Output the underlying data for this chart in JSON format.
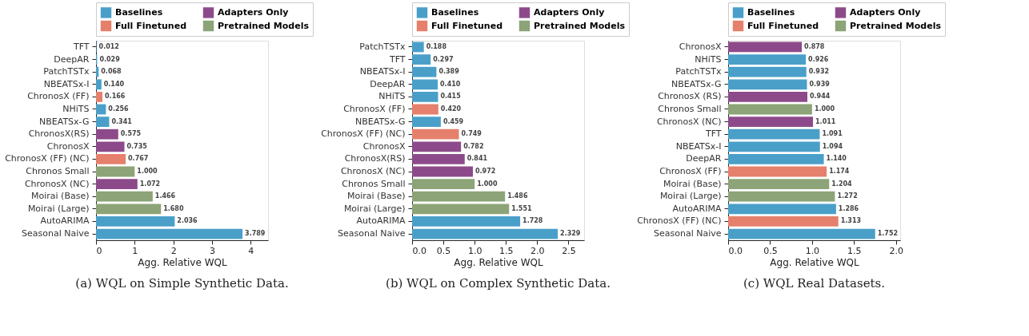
{
  "chart_data": [
    {
      "type": "bar",
      "orientation": "horizontal",
      "xlabel": "Agg. Relative WQL",
      "legend": "top",
      "grid": false,
      "categories": [
        "TFT",
        "DeepAR",
        "PatchTSTx",
        "NBEATSx-I",
        "ChronosX (FF)",
        "NHiTS",
        "NBEATSx-G",
        "ChronosX(RS)",
        "ChronosX",
        "ChronosX (FF) (NC)",
        "Chronos Small",
        "ChronosX (NC)",
        "Moirai (Base)",
        "Moirai (Large)",
        "AutoARIMA",
        "Seasonal Naive"
      ],
      "series": [
        {
          "name": "Baselines",
          "color": "#4a9fc9",
          "values": [
            0.012,
            0.029,
            0.068,
            0.14,
            null,
            0.256,
            0.341,
            null,
            null,
            null,
            null,
            null,
            null,
            null,
            2.036,
            3.789
          ],
          "value_labels": [
            "0.012",
            "0.029",
            "0.068",
            "0.140",
            null,
            "0.256",
            "0.341",
            null,
            null,
            null,
            null,
            null,
            null,
            null,
            "2.036",
            "3.789"
          ]
        },
        {
          "name": "Full Finetuned",
          "color": "#e5806c",
          "values": [
            null,
            null,
            null,
            null,
            0.166,
            null,
            null,
            null,
            null,
            0.767,
            null,
            null,
            null,
            null,
            null,
            null
          ],
          "value_labels": [
            null,
            null,
            null,
            null,
            "0.166",
            null,
            null,
            null,
            null,
            "0.767",
            null,
            null,
            null,
            null,
            null,
            null
          ]
        },
        {
          "name": "Adapters Only",
          "color": "#8d4a8a",
          "values": [
            null,
            null,
            null,
            null,
            null,
            null,
            null,
            0.575,
            0.735,
            null,
            null,
            1.072,
            null,
            null,
            null,
            null
          ],
          "value_labels": [
            null,
            null,
            null,
            null,
            null,
            null,
            null,
            "0.575",
            "0.735",
            null,
            null,
            "1.072",
            null,
            null,
            null,
            null
          ]
        },
        {
          "name": "Pretrained Models",
          "color": "#8ca477",
          "values": [
            null,
            null,
            null,
            null,
            null,
            null,
            null,
            null,
            null,
            null,
            1.0,
            null,
            1.466,
            1.68,
            null,
            null
          ],
          "value_labels": [
            null,
            null,
            null,
            null,
            null,
            null,
            null,
            null,
            null,
            null,
            "1.000",
            null,
            "1.466",
            "1.680",
            null,
            null
          ]
        }
      ],
      "xlim": [
        0,
        4.45
      ],
      "xticks": [
        0,
        1,
        2,
        3,
        4
      ],
      "annotations": [
        "(a) WQL on Simple Synthetic Data."
      ]
    },
    {
      "type": "bar",
      "orientation": "horizontal",
      "xlabel": "Agg. Relative WQL",
      "legend": "top",
      "grid": false,
      "categories": [
        "PatchTSTx",
        "TFT",
        "NBEATSx-I",
        "DeepAR",
        "NHiTS",
        "ChronosX (FF)",
        "NBEATSx-G",
        "ChronosX (FF) (NC)",
        "ChronosX",
        "ChronosX(RS)",
        "ChronosX (NC)",
        "Chronos Small",
        "Moirai (Base)",
        "Moirai (Large)",
        "AutoARIMA",
        "Seasonal Naive"
      ],
      "series": [
        {
          "name": "Baselines",
          "color": "#4a9fc9",
          "values": [
            0.188,
            0.297,
            0.389,
            0.41,
            0.415,
            null,
            0.459,
            null,
            null,
            null,
            null,
            null,
            null,
            null,
            1.728,
            2.329
          ],
          "value_labels": [
            "0.188",
            "0.297",
            "0.389",
            "0.410",
            "0.415",
            null,
            "0.459",
            null,
            null,
            null,
            null,
            null,
            null,
            null,
            "1.728",
            "2.329"
          ]
        },
        {
          "name": "Full Finetuned",
          "color": "#e5806c",
          "values": [
            null,
            null,
            null,
            null,
            null,
            0.42,
            null,
            0.749,
            null,
            null,
            null,
            null,
            null,
            null,
            null,
            null
          ],
          "value_labels": [
            null,
            null,
            null,
            null,
            null,
            "0.420",
            null,
            "0.749",
            null,
            null,
            null,
            null,
            null,
            null,
            null,
            null
          ]
        },
        {
          "name": "Adapters Only",
          "color": "#8d4a8a",
          "values": [
            null,
            null,
            null,
            null,
            null,
            null,
            null,
            null,
            0.782,
            0.841,
            0.972,
            null,
            null,
            null,
            null,
            null
          ],
          "value_labels": [
            null,
            null,
            null,
            null,
            null,
            null,
            null,
            null,
            "0.782",
            "0.841",
            "0.972",
            null,
            null,
            null,
            null,
            null
          ]
        },
        {
          "name": "Pretrained Models",
          "color": "#8ca477",
          "values": [
            null,
            null,
            null,
            null,
            null,
            null,
            null,
            null,
            null,
            null,
            null,
            1.0,
            1.486,
            1.551,
            null,
            null
          ],
          "value_labels": [
            null,
            null,
            null,
            null,
            null,
            null,
            null,
            null,
            null,
            null,
            null,
            "1.000",
            "1.486",
            "1.551",
            null,
            null
          ]
        }
      ],
      "xlim": [
        0,
        2.75
      ],
      "xticks": [
        {
          "value": 0,
          "label": "0.0"
        },
        0.5,
        {
          "value": 1,
          "label": "1.0"
        },
        1.5,
        {
          "value": 2,
          "label": "2.0"
        },
        2.5
      ],
      "annotations": [
        "(b) WQL on Complex Synthetic Data."
      ]
    },
    {
      "type": "bar",
      "orientation": "horizontal",
      "xlabel": "Agg. Relative WQL",
      "legend": "top",
      "grid": false,
      "categories": [
        "ChronosX",
        "NHiTS",
        "PatchTSTx",
        "NBEATSx-G",
        "ChronosX (RS)",
        "Chronos Small",
        "ChronosX (NC)",
        "TFT",
        "NBEATSx-I",
        "DeepAR",
        "ChronosX (FF)",
        "Moirai (Base)",
        "Moirai (Large)",
        "AutoARIMA",
        "ChronosX (FF) (NC)",
        "Seasonal Naive"
      ],
      "series": [
        {
          "name": "Baselines",
          "color": "#4a9fc9",
          "values": [
            null,
            0.926,
            0.932,
            0.939,
            null,
            null,
            null,
            1.091,
            1.094,
            1.14,
            null,
            null,
            null,
            1.286,
            null,
            1.752
          ],
          "value_labels": [
            null,
            "0.926",
            "0.932",
            "0.939",
            null,
            null,
            null,
            "1.091",
            "1.094",
            "1.140",
            null,
            null,
            null,
            "1.286",
            null,
            "1.752"
          ]
        },
        {
          "name": "Full Finetuned",
          "color": "#e5806c",
          "values": [
            null,
            null,
            null,
            null,
            null,
            null,
            null,
            null,
            null,
            null,
            1.174,
            null,
            null,
            null,
            1.313,
            null
          ],
          "value_labels": [
            null,
            null,
            null,
            null,
            null,
            null,
            null,
            null,
            null,
            null,
            "1.174",
            null,
            null,
            null,
            "1.313",
            null
          ]
        },
        {
          "name": "Adapters Only",
          "color": "#8d4a8a",
          "values": [
            0.878,
            null,
            null,
            null,
            0.944,
            null,
            1.011,
            null,
            null,
            null,
            null,
            null,
            null,
            null,
            null,
            null
          ],
          "value_labels": [
            "0.878",
            null,
            null,
            null,
            "0.944",
            null,
            "1.011",
            null,
            null,
            null,
            null,
            null,
            null,
            null,
            null,
            null
          ]
        },
        {
          "name": "Pretrained Models",
          "color": "#8ca477",
          "values": [
            null,
            null,
            null,
            null,
            null,
            1.0,
            null,
            null,
            null,
            null,
            null,
            1.204,
            1.272,
            null,
            null,
            null
          ],
          "value_labels": [
            null,
            null,
            null,
            null,
            null,
            "1.000",
            null,
            null,
            null,
            null,
            null,
            "1.204",
            "1.272",
            null,
            null,
            null
          ]
        }
      ],
      "xlim": [
        0,
        2.05
      ],
      "xticks": [
        {
          "value": 0,
          "label": "0.0"
        },
        0.5,
        {
          "value": 1,
          "label": "1.0"
        },
        1.5,
        {
          "value": 2,
          "label": "2.0"
        }
      ],
      "annotations": [
        "(c) WQL Real Datasets."
      ]
    }
  ]
}
